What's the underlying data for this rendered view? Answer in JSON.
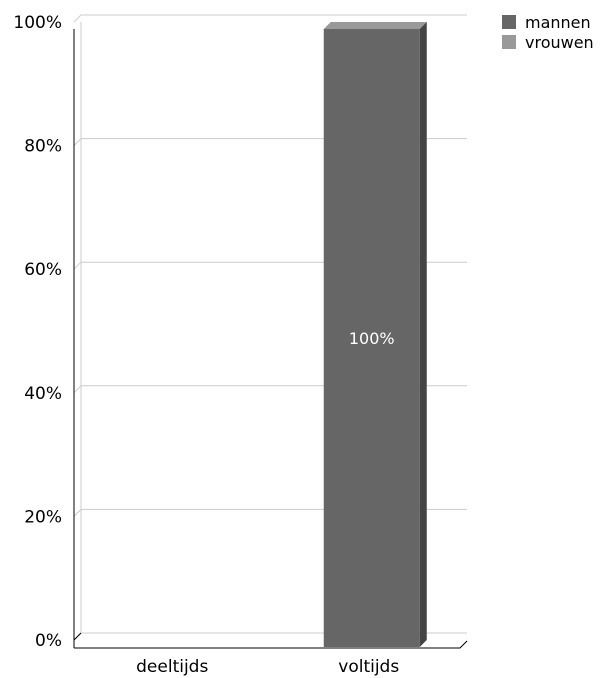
{
  "chart_data": {
    "type": "bar",
    "stacked": true,
    "percent": true,
    "categories": [
      "deeltijds",
      "voltijds"
    ],
    "series": [
      {
        "name": "mannen",
        "values": [
          0,
          100
        ],
        "color": "#666666"
      },
      {
        "name": "vrouwen",
        "values": [
          0,
          0
        ],
        "color": "#999999"
      }
    ],
    "data_labels": [
      {
        "category": "voltijds",
        "series": "mannen",
        "text": "100%"
      }
    ],
    "yticks": [
      "0%",
      "20%",
      "40%",
      "60%",
      "80%",
      "100%"
    ],
    "ylim": [
      0,
      100
    ],
    "grid": true,
    "legend_position": "top-right",
    "title": "",
    "xlabel": "",
    "ylabel": ""
  }
}
